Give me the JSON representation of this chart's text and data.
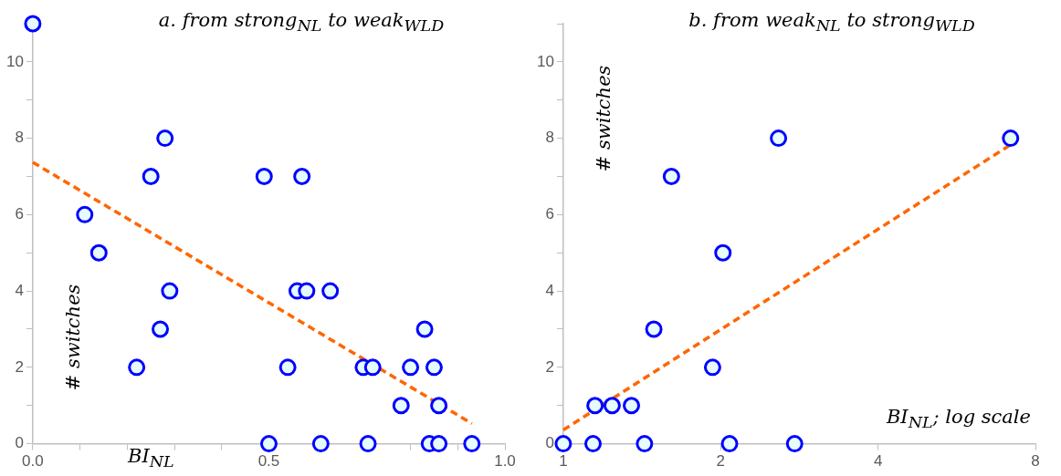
{
  "chart_data": [
    {
      "type": "scatter",
      "title": "a. from strong$_{NL}$ to weak$_{WLD}$",
      "xlabel": "BI$_{NL}$",
      "ylabel": "# switches",
      "xlim": [
        0,
        1
      ],
      "xticks": [
        {
          "value": 0,
          "label": "0.0"
        },
        {
          "value": 0.1,
          "label": null
        },
        {
          "value": 0.2,
          "label": null
        },
        {
          "value": 0.3,
          "label": null
        },
        {
          "value": 0.4,
          "label": null
        },
        {
          "value": 0.5,
          "label": "0.5"
        },
        {
          "value": 0.6,
          "label": null
        },
        {
          "value": 0.7,
          "label": null
        },
        {
          "value": 0.8,
          "label": null
        },
        {
          "value": 0.9,
          "label": null
        },
        {
          "value": 1,
          "label": "1.0"
        }
      ],
      "ylim": [
        0,
        11
      ],
      "yticks": [
        0,
        {
          "value": 1,
          "label": null
        },
        2,
        {
          "value": 3,
          "label": null
        },
        4,
        {
          "value": 5,
          "label": null
        },
        6,
        {
          "value": 7,
          "label": null
        },
        8,
        {
          "value": 9,
          "label": null
        },
        10,
        {
          "value": 11,
          "label": null
        }
      ],
      "grid": false,
      "legend": false,
      "series": [
        {
          "type": "scatter",
          "color": "#0000ff",
          "marker": "circle",
          "x": [
            0,
            0.11,
            0.14,
            0.25,
            0.28,
            0.29,
            0.27,
            0.22,
            0.49,
            0.57,
            0.56,
            0.58,
            0.63,
            0.54,
            0.5,
            0.61,
            0.7,
            0.72,
            0.71,
            0.78,
            0.8,
            0.83,
            0.85,
            0.86,
            0.84,
            0.86,
            0.93
          ],
          "values": [
            11,
            6,
            5,
            7,
            8,
            4,
            3,
            2,
            7,
            7,
            4,
            4,
            4,
            2,
            0,
            0,
            2,
            2,
            0,
            1,
            2,
            3,
            2,
            1,
            0,
            0,
            0
          ]
        },
        {
          "type": "line",
          "color": "#ff6600",
          "line_style": "dashed",
          "marker": "none",
          "x": [
            0,
            0.93
          ],
          "values": [
            7.37,
            0.53
          ]
        }
      ]
    },
    {
      "type": "scatter",
      "title": "b. from weak$_{NL}$ to strong$_{WLD}$",
      "xlabel": "BI$_{NL}$; log scale",
      "ylabel": "# switches",
      "log": "x",
      "xlim": [
        1,
        8
      ],
      "xticks": [
        1,
        2,
        4,
        8
      ],
      "ylim": [
        0,
        11
      ],
      "yticks": [
        0,
        {
          "value": 1,
          "label": null
        },
        2,
        {
          "value": 3,
          "label": null
        },
        4,
        {
          "value": 5,
          "label": null
        },
        6,
        {
          "value": 7,
          "label": null
        },
        8,
        {
          "value": 9,
          "label": null
        },
        10,
        {
          "value": 11,
          "label": null
        }
      ],
      "grid": false,
      "legend": false,
      "series": [
        {
          "type": "scatter",
          "color": "#0000ff",
          "marker": "circle",
          "x": [
            1,
            1.14,
            1.43,
            2.08,
            2.77,
            1.15,
            1.24,
            1.35,
            1.93,
            1.49,
            2.02,
            1.61,
            2.58,
            7.17
          ],
          "values": [
            0,
            0,
            0,
            0,
            0,
            1,
            1,
            1,
            2,
            3,
            5,
            7,
            8,
            8
          ]
        },
        {
          "type": "line",
          "color": "#ff6600",
          "line_style": "dashed",
          "marker": "none",
          "x": [
            1,
            7.17
          ],
          "values": [
            0.36,
            7.83
          ]
        }
      ]
    }
  ]
}
